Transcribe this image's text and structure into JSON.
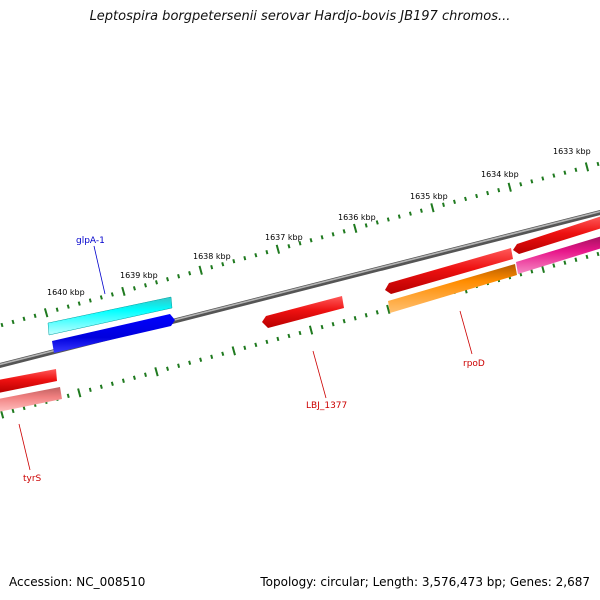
{
  "title": "Leptospira borgpetersenii serovar Hardjo-bovis JB197 chromos...",
  "footer": {
    "accession": "Accession: NC_008510",
    "summary": "Topology: circular; Length: 3,576,473 bp; Genes: 2,687"
  },
  "colors": {
    "backbone": "#808080",
    "ticks": "#1f7a1f",
    "red_gene": "#ee1111",
    "cyan_gene": "#00ffff",
    "blue_gene": "#0000ee",
    "orange_gene": "#ff8c00",
    "magenta_gene": "#e8168a",
    "pink_gene": "#f08080",
    "blue_label": "#0000cc",
    "red_label": "#cc0000"
  },
  "scale": {
    "unit": "kbp",
    "tick_labels": [
      "1633 kbp",
      "1634 kbp",
      "1635 kbp",
      "1636 kbp",
      "1637 kbp",
      "1638 kbp",
      "1639 kbp",
      "1640 kbp"
    ]
  },
  "gene_labels": {
    "glpA": "glpA-1",
    "lbj": "LBJ_1377",
    "rpoD": "rpoD",
    "tyrS": "tyrS"
  }
}
